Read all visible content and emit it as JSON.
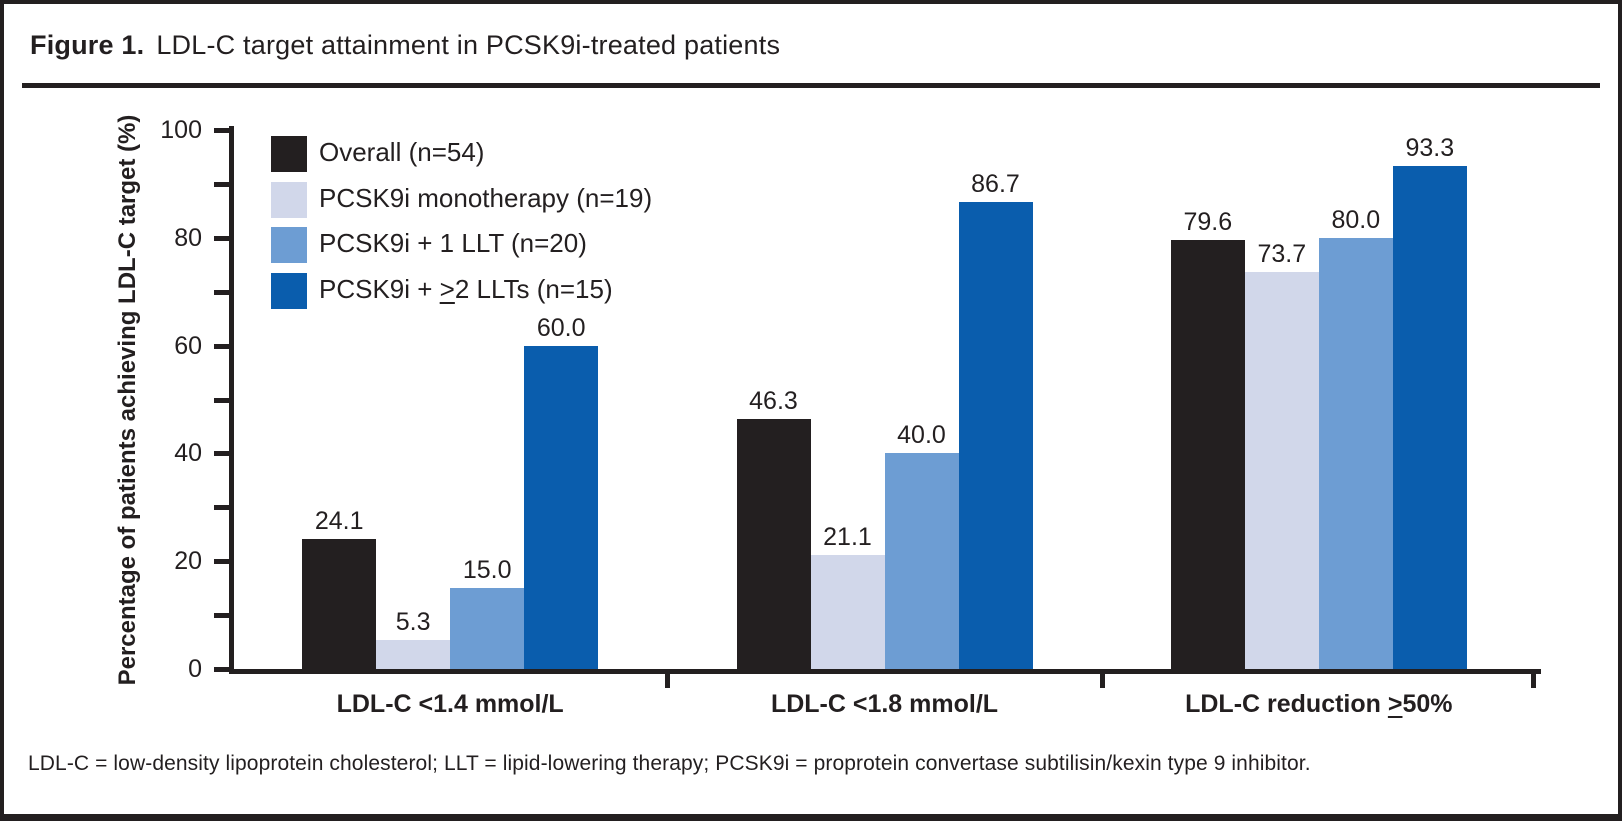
{
  "figure": {
    "label": "Figure 1.",
    "title": "LDL-C target attainment in PCSK9i-treated patients",
    "footnote": "LDL-C = low-density lipoprotein cholesterol; LLT = lipid-lowering therapy; PCSK9i = proprotein convertase subtilisin/kexin type 9 inhibitor."
  },
  "colors": {
    "ink": "#231f20",
    "series_overall": "#231f20",
    "series_monotherapy": "#d1d7ea",
    "series_one_llt": "#6d9dd3",
    "series_two_llts": "#0a5dad"
  },
  "chart_data": {
    "type": "bar",
    "title": "",
    "xlabel": "",
    "ylabel": "Percentage of patients achieving LDL-C target (%)",
    "ylim": [
      0,
      100
    ],
    "ytick_major": [
      0,
      20,
      40,
      60,
      80,
      100
    ],
    "ytick_minor": [
      10,
      30,
      50,
      70,
      90
    ],
    "grid": false,
    "legend_position": "upper-left-inside",
    "bar_value_labels": true,
    "value_label_decimals": 1,
    "categories": [
      "LDL-C <1.4 mmol/L",
      "LDL-C <1.8 mmol/L",
      "LDL-C reduction ≥50%"
    ],
    "series": [
      {
        "name": "Overall (n=54)",
        "color": "#231f20",
        "values": [
          24.1,
          46.3,
          79.6
        ]
      },
      {
        "name": "PCSK9i monotherapy (n=19)",
        "color": "#d1d7ea",
        "values": [
          5.3,
          21.1,
          73.7
        ]
      },
      {
        "name": "PCSK9i + 1 LLT (n=20)",
        "color": "#6d9dd3",
        "values": [
          15.0,
          40.0,
          80.0
        ]
      },
      {
        "name": "PCSK9i + ≥2 LLTs (n=15)",
        "color": "#0a5dad",
        "values": [
          60.0,
          86.7,
          93.3
        ]
      }
    ]
  }
}
